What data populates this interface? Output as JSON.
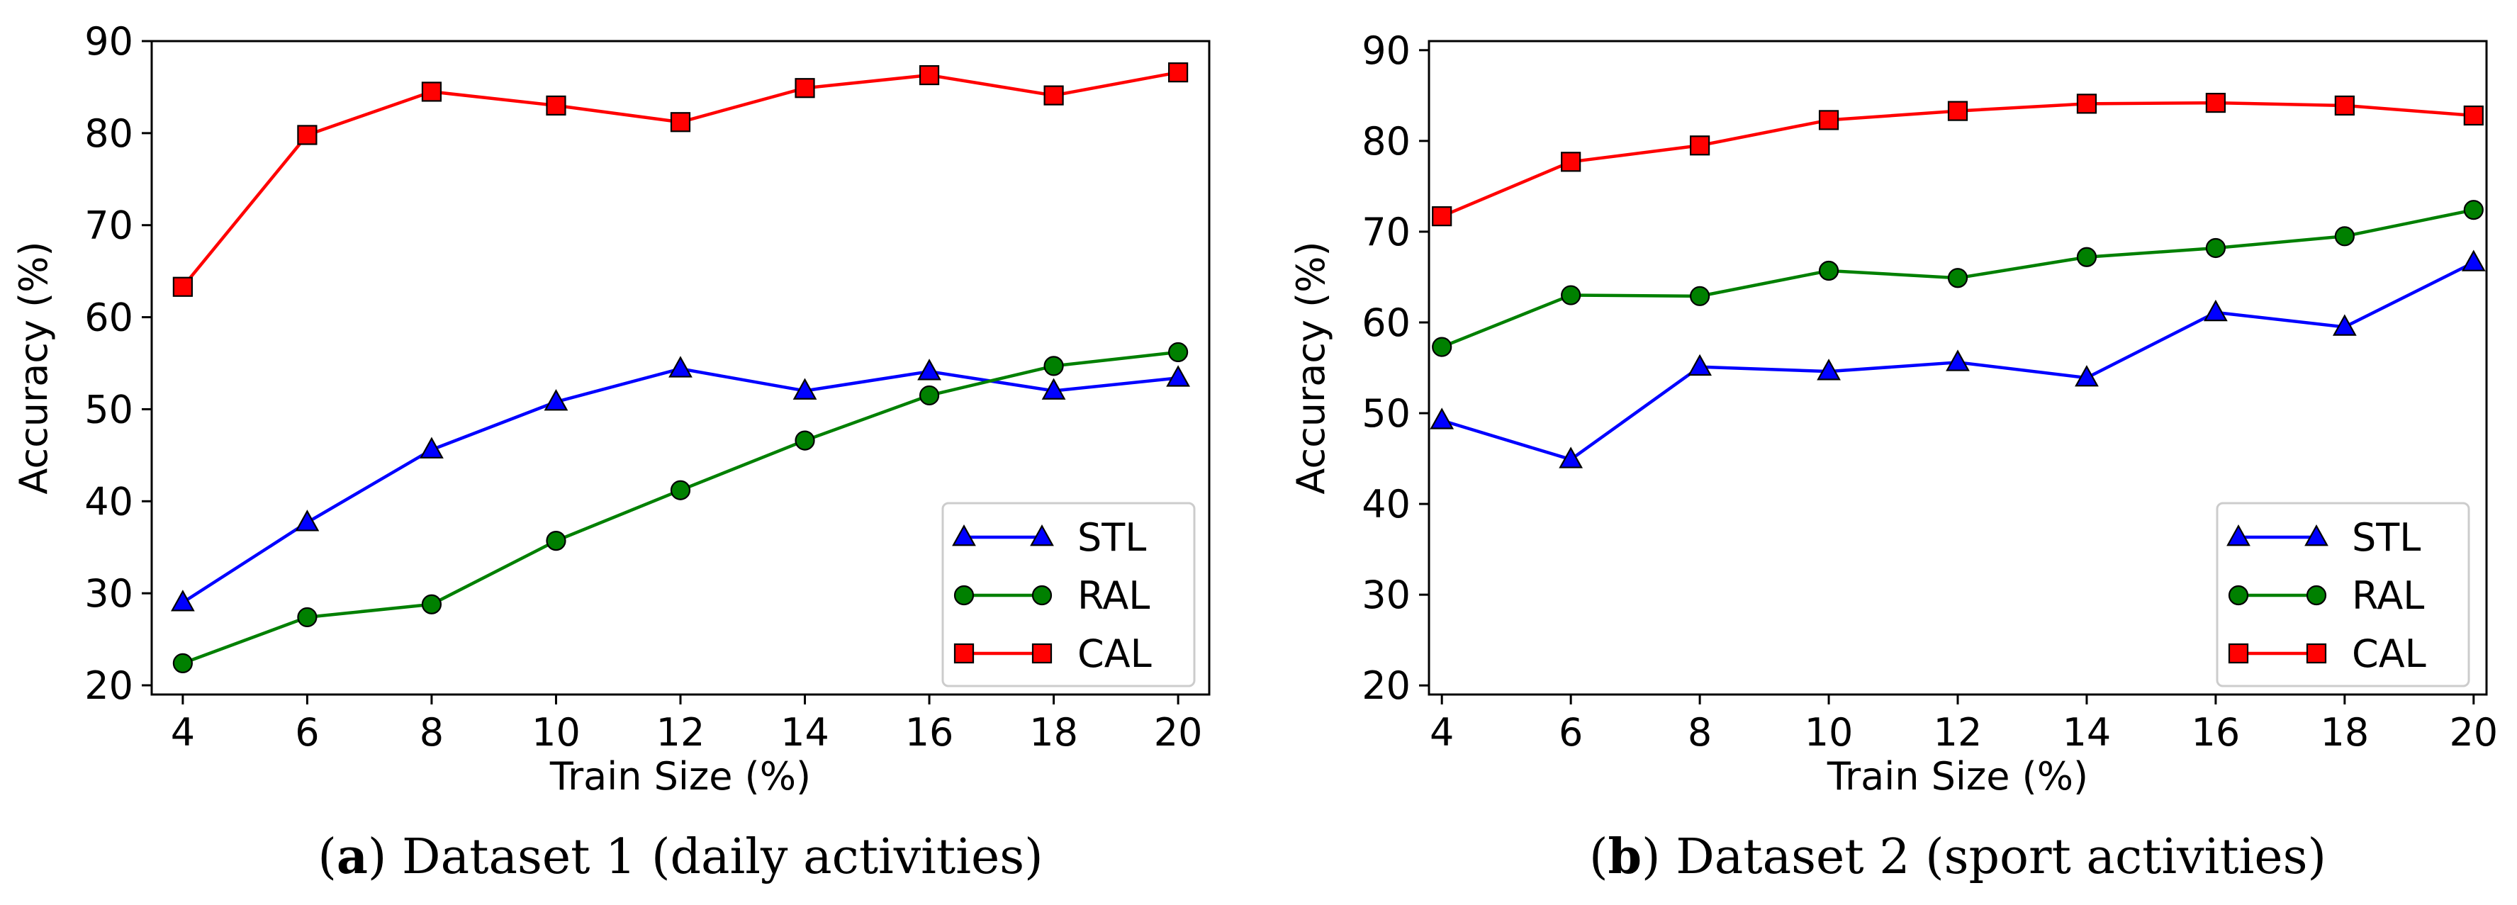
{
  "chart_data": [
    {
      "type": "line",
      "caption_letter": "a",
      "caption_text": "Dataset 1 (daily activities)",
      "xlabel": "Train Size (%)",
      "ylabel": "Accuracy (%)",
      "x": [
        4,
        6,
        8,
        10,
        12,
        14,
        16,
        18,
        20
      ],
      "xticks": [
        "4",
        "6",
        "8",
        "10",
        "12",
        "14",
        "16",
        "18",
        "20"
      ],
      "yticks": [
        "20",
        "30",
        "40",
        "50",
        "60",
        "70",
        "80",
        "90"
      ],
      "xlim": [
        3.5,
        20.5
      ],
      "ylim": [
        19,
        90
      ],
      "grid": false,
      "legend_position": "lower-right",
      "series": [
        {
          "name": "STL",
          "color": "#0000ff",
          "marker": "triangle",
          "values": [
            29.0,
            37.7,
            45.6,
            50.8,
            54.4,
            52.0,
            54.1,
            52.0,
            53.4
          ]
        },
        {
          "name": "RAL",
          "color": "#008000",
          "marker": "circle",
          "values": [
            22.4,
            27.4,
            28.8,
            35.7,
            41.2,
            46.6,
            51.5,
            54.7,
            56.2
          ]
        },
        {
          "name": "CAL",
          "color": "#ff0000",
          "marker": "square",
          "values": [
            63.3,
            79.8,
            84.5,
            83.0,
            81.2,
            84.9,
            86.3,
            84.1,
            86.6
          ]
        }
      ]
    },
    {
      "type": "line",
      "caption_letter": "b",
      "caption_text": "Dataset 2 (sport activities)",
      "xlabel": "Train Size (%)",
      "ylabel": "Accuracy (%)",
      "x": [
        4,
        6,
        8,
        10,
        12,
        14,
        16,
        18,
        20
      ],
      "xticks": [
        "4",
        "6",
        "8",
        "10",
        "12",
        "14",
        "16",
        "18",
        "20"
      ],
      "yticks": [
        "20",
        "30",
        "40",
        "50",
        "60",
        "70",
        "80",
        "90"
      ],
      "xlim": [
        3.8,
        20.2
      ],
      "ylim": [
        19,
        91
      ],
      "grid": false,
      "legend_position": "lower-right",
      "series": [
        {
          "name": "STL",
          "color": "#0000ff",
          "marker": "triangle",
          "values": [
            49.2,
            44.9,
            55.1,
            54.6,
            55.6,
            53.9,
            61.1,
            59.5,
            66.6
          ]
        },
        {
          "name": "RAL",
          "color": "#008000",
          "marker": "circle",
          "values": [
            57.3,
            63.0,
            62.9,
            65.7,
            64.9,
            67.2,
            68.2,
            69.5,
            72.4
          ]
        },
        {
          "name": "CAL",
          "color": "#ff0000",
          "marker": "square",
          "values": [
            71.7,
            77.7,
            79.5,
            82.3,
            83.3,
            84.1,
            84.2,
            83.9,
            82.8
          ]
        }
      ]
    }
  ]
}
